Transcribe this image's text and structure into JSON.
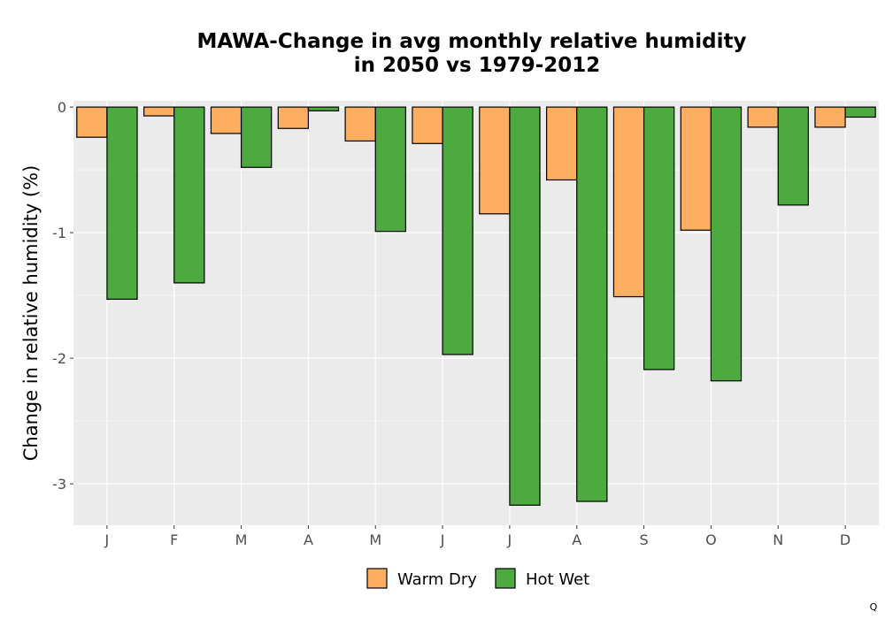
{
  "chart_data": {
    "type": "bar",
    "title_lines": [
      "MAWA-Change in avg monthly relative humidity",
      "in 2050 vs 1979-2012"
    ],
    "xlabel": "",
    "ylabel": "Change in relative humidity (%)",
    "categories": [
      "J",
      "F",
      "M",
      "A",
      "M",
      "J",
      "J",
      "A",
      "S",
      "O",
      "N",
      "D"
    ],
    "ylim": [
      -3.33,
      0.05
    ],
    "yticks": [
      0,
      -1,
      -2,
      -3
    ],
    "ytick_labels": [
      "0",
      "-1",
      "-2",
      "-3"
    ],
    "grid": true,
    "legend_position": "bottom",
    "series": [
      {
        "name": "Warm Dry",
        "color": "#FDAE61",
        "values": [
          -0.24,
          -0.07,
          -0.21,
          -0.17,
          -0.27,
          -0.29,
          -0.85,
          -0.58,
          -1.51,
          -0.98,
          -0.16,
          -0.16
        ]
      },
      {
        "name": "Hot Wet",
        "color": "#4DAA3F",
        "values": [
          -1.53,
          -1.4,
          -0.48,
          -0.03,
          -0.99,
          -1.97,
          -3.17,
          -3.14,
          -2.09,
          -2.18,
          -0.78,
          -0.08
        ]
      }
    ],
    "footnote": "Q"
  }
}
